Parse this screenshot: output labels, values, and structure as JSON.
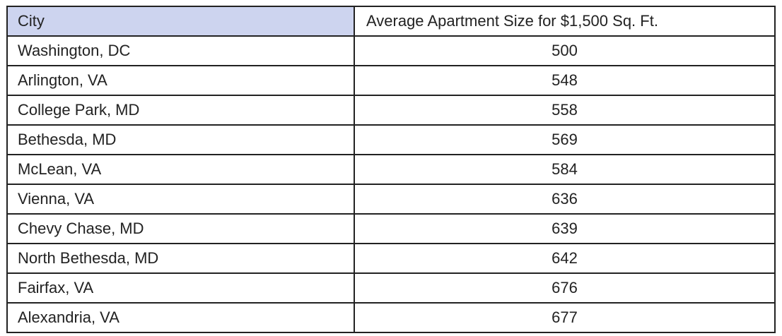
{
  "table": {
    "header": [
      "City",
      "Average Apartment Size for $1,500 Sq. Ft."
    ],
    "rows": [
      [
        "Washington, DC",
        500
      ],
      [
        "Arlington, VA",
        548
      ],
      [
        "College Park, MD",
        558
      ],
      [
        "Bethesda, MD",
        569
      ],
      [
        "McLean, VA",
        584
      ],
      [
        "Vienna, VA",
        636
      ],
      [
        "Chevy Chase, MD",
        639
      ],
      [
        "North Bethesda, MD",
        642
      ],
      [
        "Fairfax, VA",
        676
      ],
      [
        "Alexandria, VA",
        677
      ]
    ]
  }
}
